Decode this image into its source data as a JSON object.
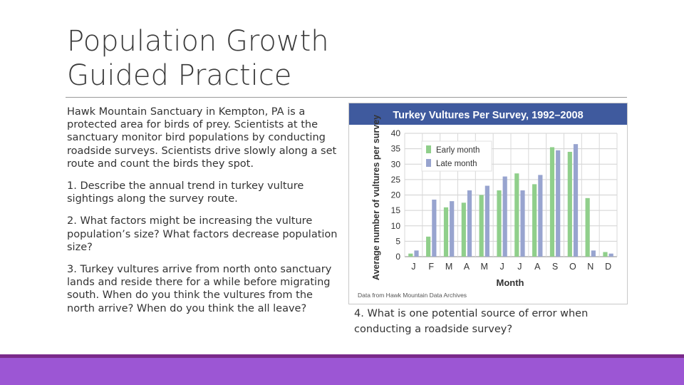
{
  "slide": {
    "title_lines": [
      "Population Growth",
      "Guided Practice"
    ],
    "intro": "Hawk Mountain Sanctuary in Kempton, PA is a protected area for birds of prey. Scientists at the sanctuary monitor bird populations by conducting roadside surveys. Scientists drive slowly along a set route and count the birds they spot.",
    "q1": "1. Describe the annual trend in turkey vulture sightings along the survey route.",
    "q2": "2. What factors might be increasing the vulture population’s size? What factors decrease population size?",
    "q3": "3. Turkey vultures arrive from north onto sanctuary lands and reside there for a while before migrating south. When do you think the vultures from the north arrive? When do you think the all leave?",
    "q4": "4. What is one potential source of error when conducting a roadside survey?"
  },
  "colors": {
    "title_bar": "#3f5a9e",
    "early": "#90cf8b",
    "late": "#98a4cf",
    "bottom_band": "#9c56d4",
    "bottom_line": "#7a2a8a"
  },
  "chart_data": {
    "type": "bar",
    "title": "Turkey Vultures Per Survey, 1992–2008",
    "xlabel": "Month",
    "ylabel": "Average number of vultures per survey",
    "categories": [
      "J",
      "F",
      "M",
      "A",
      "M",
      "J",
      "J",
      "A",
      "S",
      "O",
      "N",
      "D"
    ],
    "series": [
      {
        "name": "Early month",
        "values": [
          1,
          6.5,
          16,
          17.5,
          20,
          21.5,
          27,
          23.5,
          35.5,
          34,
          19,
          1.5
        ]
      },
      {
        "name": "Late month",
        "values": [
          2,
          18.5,
          18,
          21.5,
          23,
          26,
          21.5,
          26.5,
          34.5,
          36.5,
          2,
          1
        ]
      }
    ],
    "yticks": [
      0,
      5,
      10,
      15,
      20,
      25,
      30,
      35,
      40
    ],
    "ylim": [
      0,
      40
    ],
    "grid": true,
    "legend": "top-left",
    "source_note": "Data from Hawk Mountain Data Archives"
  }
}
